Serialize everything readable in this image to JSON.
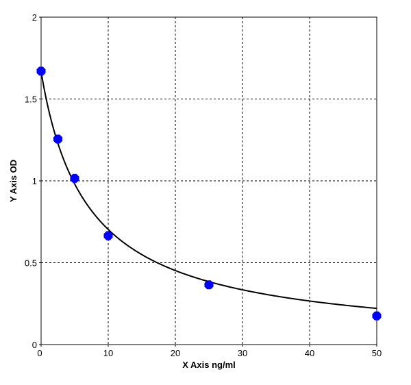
{
  "chart_data": {
    "type": "scatter",
    "title": "",
    "xlabel": "X  Axis ng/ml",
    "ylabel": "Y  Axis OD",
    "xlim": [
      0,
      50
    ],
    "ylim": [
      0,
      2
    ],
    "x_ticks": [
      "0",
      "10",
      "20",
      "30",
      "40",
      "50"
    ],
    "y_ticks": [
      "0",
      "0.5",
      "1",
      "1.5",
      "2"
    ],
    "x_tick_values": [
      0,
      10,
      20,
      30,
      40,
      50
    ],
    "y_tick_values": [
      0,
      0.5,
      1,
      1.5,
      2
    ],
    "grid": true,
    "grid_style": "dashed",
    "point_color": "#0000ff",
    "curve_color": "#000000",
    "series": [
      {
        "x": [
          0,
          2.5,
          5,
          10,
          25,
          50
        ],
        "y": [
          1.67,
          1.255,
          1.015,
          0.665,
          0.365,
          0.175
        ]
      }
    ],
    "fit_curve": true
  }
}
